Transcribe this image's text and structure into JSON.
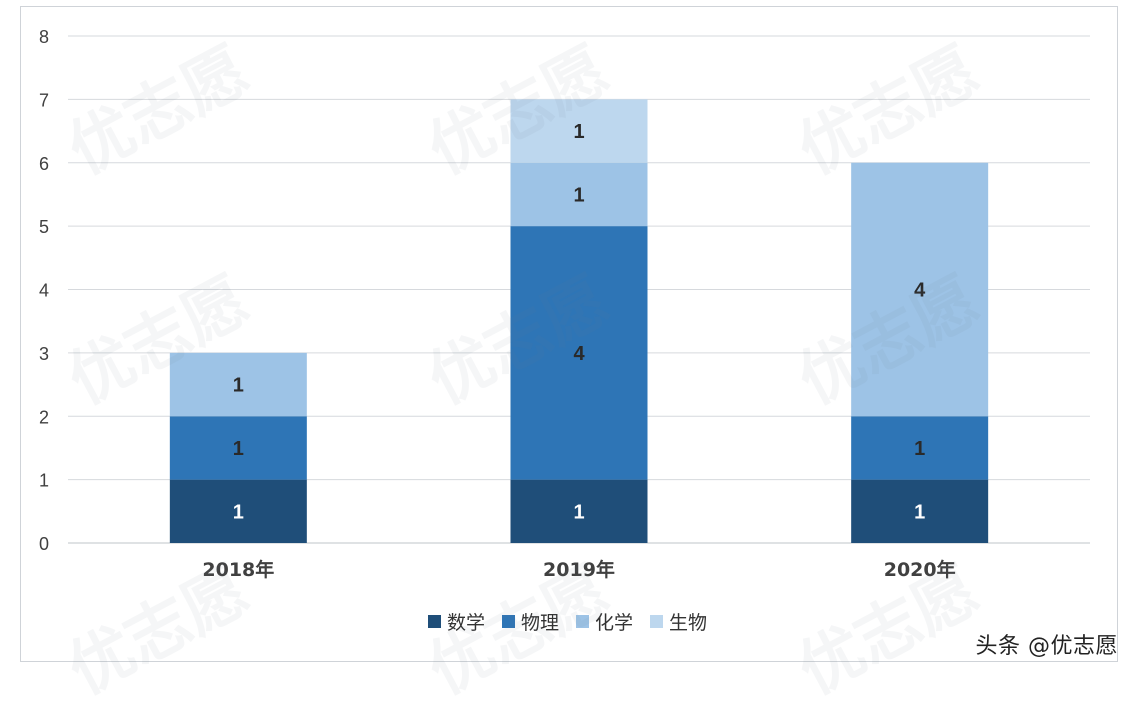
{
  "chart_data": {
    "type": "bar",
    "stacked": true,
    "categories": [
      "2018年",
      "2019年",
      "2020年"
    ],
    "series": [
      {
        "name": "数学",
        "color": "#1f4e79",
        "values": [
          1,
          1,
          1
        ]
      },
      {
        "name": "物理",
        "color": "#2e75b6",
        "values": [
          1,
          4,
          1
        ]
      },
      {
        "name": "化学",
        "color": "#9dc3e6",
        "values": [
          1,
          1,
          4
        ]
      },
      {
        "name": "生物",
        "color": "#bdd7ee",
        "values": [
          0,
          1,
          0
        ]
      }
    ],
    "yticks": [
      "0",
      "1",
      "2",
      "3",
      "4",
      "5",
      "6",
      "7",
      "8"
    ],
    "ylim": [
      0,
      8
    ],
    "grid": true,
    "legend_position": "bottom"
  },
  "credit": "头条 @优志愿",
  "watermark_text": "优志愿"
}
